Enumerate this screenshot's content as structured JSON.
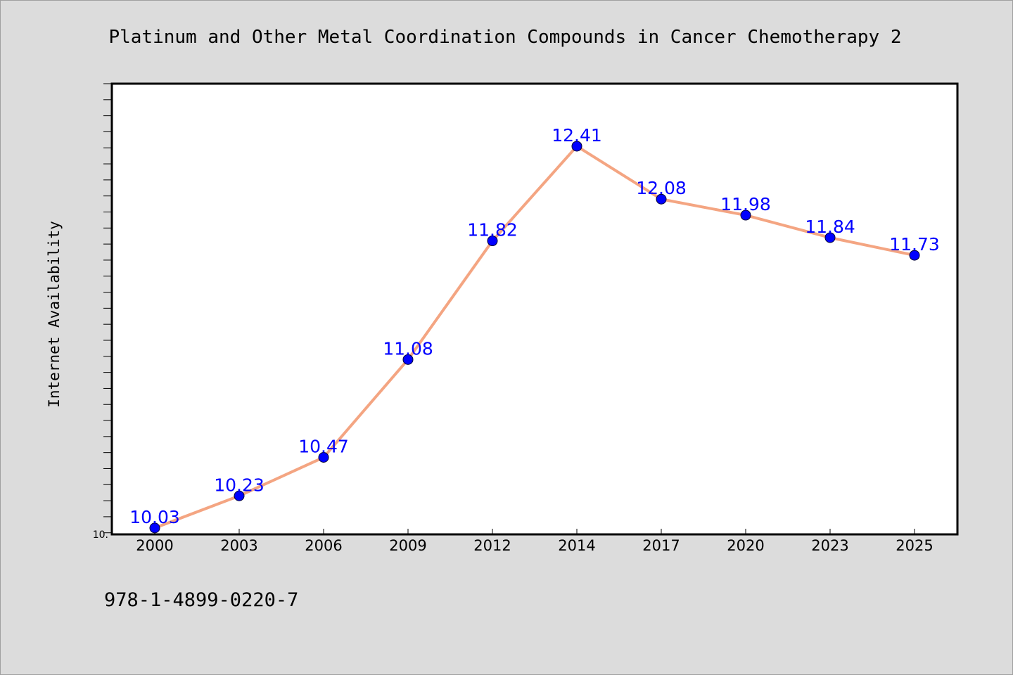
{
  "colors": {
    "background": "#dcdcdc",
    "plot_area": "#ffffff",
    "line": "#f4a582",
    "marker": "#0000ff",
    "data_label": "#0000ff"
  },
  "footer": {
    "isbn": "978-1-4899-0220-7"
  },
  "chart_data": {
    "type": "line",
    "title": "Platinum and Other Metal Coordination Compounds in Cancer Chemotherapy 2",
    "xlabel": "",
    "ylabel": "Internet Availability",
    "categories": [
      "2000",
      "2003",
      "2006",
      "2009",
      "2012",
      "2014",
      "2017",
      "2020",
      "2023",
      "2025"
    ],
    "series": [
      {
        "values": [
          10.03,
          10.23,
          10.47,
          11.08,
          11.82,
          12.41,
          12.08,
          11.98,
          11.84,
          11.73
        ],
        "labels": [
          "10.03",
          "10.23",
          "10.47",
          "11.08",
          "11.82",
          "12.41",
          "12.08",
          "11.98",
          "11.84",
          "11.73"
        ]
      }
    ],
    "ylim": [
      9.99,
      12.8
    ],
    "y_tick_labels": [
      "10."
    ],
    "y_minor_step": 0.1,
    "grid": false,
    "legend": "none"
  }
}
